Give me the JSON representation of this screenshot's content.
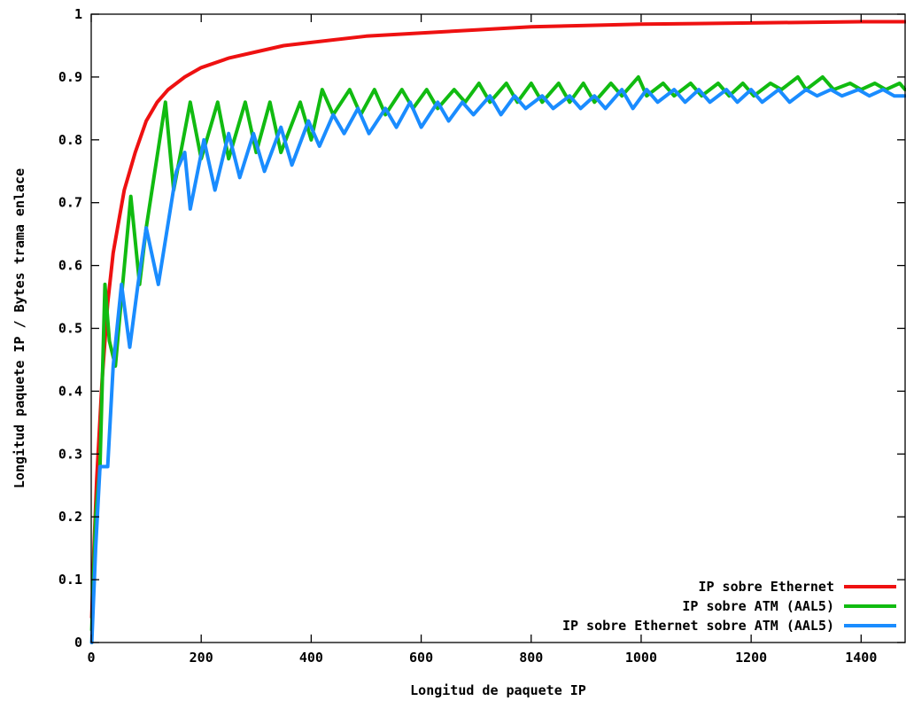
{
  "chart_data": {
    "type": "line",
    "title": "",
    "xlabel": "Longitud de paquete IP",
    "ylabel": "Longitud paquete IP / Bytes trama enlace",
    "xlim": [
      0,
      1480
    ],
    "ylim": [
      0,
      1
    ],
    "x_ticks": [
      {
        "value": 0,
        "label": "0"
      },
      {
        "value": 200,
        "label": "200"
      },
      {
        "value": 400,
        "label": "400"
      },
      {
        "value": 600,
        "label": "600"
      },
      {
        "value": 800,
        "label": "800"
      },
      {
        "value": 1000,
        "label": "1000"
      },
      {
        "value": 1200,
        "label": "1200"
      },
      {
        "value": 1400,
        "label": "1400"
      }
    ],
    "y_ticks": [
      {
        "value": 0,
        "label": "0"
      },
      {
        "value": 0.1,
        "label": "0.1"
      },
      {
        "value": 0.2,
        "label": "0.2"
      },
      {
        "value": 0.3,
        "label": "0.3"
      },
      {
        "value": 0.4,
        "label": "0.4"
      },
      {
        "value": 0.5,
        "label": "0.5"
      },
      {
        "value": 0.6,
        "label": "0.6"
      },
      {
        "value": 0.7,
        "label": "0.7"
      },
      {
        "value": 0.8,
        "label": "0.8"
      },
      {
        "value": 0.9,
        "label": "0.9"
      },
      {
        "value": 1,
        "label": "1"
      }
    ],
    "grid": false,
    "legend_position": "bottom-right",
    "series": [
      {
        "name": "IP sobre Ethernet",
        "color": "#ee1111",
        "points": [
          [
            1,
            0.04
          ],
          [
            5,
            0.15
          ],
          [
            10,
            0.26
          ],
          [
            20,
            0.42
          ],
          [
            30,
            0.54
          ],
          [
            40,
            0.62
          ],
          [
            50,
            0.67
          ],
          [
            60,
            0.72
          ],
          [
            70,
            0.75
          ],
          [
            80,
            0.78
          ],
          [
            100,
            0.83
          ],
          [
            120,
            0.86
          ],
          [
            140,
            0.88
          ],
          [
            170,
            0.9
          ],
          [
            200,
            0.915
          ],
          [
            250,
            0.93
          ],
          [
            300,
            0.94
          ],
          [
            350,
            0.95
          ],
          [
            400,
            0.955
          ],
          [
            500,
            0.965
          ],
          [
            600,
            0.97
          ],
          [
            700,
            0.975
          ],
          [
            800,
            0.98
          ],
          [
            900,
            0.982
          ],
          [
            1000,
            0.984
          ],
          [
            1100,
            0.985
          ],
          [
            1200,
            0.986
          ],
          [
            1300,
            0.987
          ],
          [
            1400,
            0.988
          ],
          [
            1480,
            0.988
          ]
        ]
      },
      {
        "name": "IP sobre ATM (AAL5)",
        "color": "#11bb11",
        "points": [
          [
            1,
            0.02
          ],
          [
            8,
            0.2
          ],
          [
            16,
            0.28
          ],
          [
            25,
            0.57
          ],
          [
            33,
            0.48
          ],
          [
            44,
            0.44
          ],
          [
            55,
            0.55
          ],
          [
            72,
            0.71
          ],
          [
            88,
            0.57
          ],
          [
            100,
            0.66
          ],
          [
            135,
            0.86
          ],
          [
            150,
            0.72
          ],
          [
            180,
            0.86
          ],
          [
            200,
            0.77
          ],
          [
            230,
            0.86
          ],
          [
            250,
            0.77
          ],
          [
            280,
            0.86
          ],
          [
            300,
            0.78
          ],
          [
            325,
            0.86
          ],
          [
            345,
            0.78
          ],
          [
            380,
            0.86
          ],
          [
            400,
            0.8
          ],
          [
            420,
            0.88
          ],
          [
            440,
            0.84
          ],
          [
            470,
            0.88
          ],
          [
            490,
            0.84
          ],
          [
            515,
            0.88
          ],
          [
            535,
            0.84
          ],
          [
            565,
            0.88
          ],
          [
            585,
            0.85
          ],
          [
            610,
            0.88
          ],
          [
            630,
            0.85
          ],
          [
            660,
            0.88
          ],
          [
            680,
            0.86
          ],
          [
            705,
            0.89
          ],
          [
            725,
            0.86
          ],
          [
            755,
            0.89
          ],
          [
            775,
            0.86
          ],
          [
            800,
            0.89
          ],
          [
            820,
            0.86
          ],
          [
            850,
            0.89
          ],
          [
            870,
            0.86
          ],
          [
            895,
            0.89
          ],
          [
            915,
            0.86
          ],
          [
            945,
            0.89
          ],
          [
            965,
            0.87
          ],
          [
            995,
            0.9
          ],
          [
            1010,
            0.87
          ],
          [
            1040,
            0.89
          ],
          [
            1060,
            0.87
          ],
          [
            1090,
            0.89
          ],
          [
            1110,
            0.87
          ],
          [
            1140,
            0.89
          ],
          [
            1160,
            0.87
          ],
          [
            1185,
            0.89
          ],
          [
            1205,
            0.87
          ],
          [
            1235,
            0.89
          ],
          [
            1255,
            0.88
          ],
          [
            1285,
            0.9
          ],
          [
            1300,
            0.88
          ],
          [
            1330,
            0.9
          ],
          [
            1350,
            0.88
          ],
          [
            1380,
            0.89
          ],
          [
            1400,
            0.88
          ],
          [
            1425,
            0.89
          ],
          [
            1445,
            0.88
          ],
          [
            1470,
            0.89
          ],
          [
            1480,
            0.88
          ]
        ]
      },
      {
        "name": "IP sobre Ethernet sobre ATM (AAL5)",
        "color": "#1a8cff",
        "points": [
          [
            1,
            0.0
          ],
          [
            8,
            0.15
          ],
          [
            16,
            0.28
          ],
          [
            30,
            0.28
          ],
          [
            40,
            0.44
          ],
          [
            55,
            0.57
          ],
          [
            70,
            0.47
          ],
          [
            85,
            0.57
          ],
          [
            100,
            0.66
          ],
          [
            122,
            0.57
          ],
          [
            155,
            0.75
          ],
          [
            170,
            0.78
          ],
          [
            180,
            0.69
          ],
          [
            205,
            0.8
          ],
          [
            225,
            0.72
          ],
          [
            250,
            0.81
          ],
          [
            270,
            0.74
          ],
          [
            295,
            0.81
          ],
          [
            315,
            0.75
          ],
          [
            345,
            0.82
          ],
          [
            365,
            0.76
          ],
          [
            395,
            0.83
          ],
          [
            415,
            0.79
          ],
          [
            440,
            0.84
          ],
          [
            460,
            0.81
          ],
          [
            485,
            0.85
          ],
          [
            505,
            0.81
          ],
          [
            535,
            0.85
          ],
          [
            555,
            0.82
          ],
          [
            580,
            0.86
          ],
          [
            600,
            0.82
          ],
          [
            630,
            0.86
          ],
          [
            650,
            0.83
          ],
          [
            675,
            0.86
          ],
          [
            695,
            0.84
          ],
          [
            725,
            0.87
          ],
          [
            745,
            0.84
          ],
          [
            770,
            0.87
          ],
          [
            790,
            0.85
          ],
          [
            820,
            0.87
          ],
          [
            840,
            0.85
          ],
          [
            870,
            0.87
          ],
          [
            890,
            0.85
          ],
          [
            915,
            0.87
          ],
          [
            935,
            0.85
          ],
          [
            965,
            0.88
          ],
          [
            985,
            0.85
          ],
          [
            1010,
            0.88
          ],
          [
            1030,
            0.86
          ],
          [
            1060,
            0.88
          ],
          [
            1080,
            0.86
          ],
          [
            1105,
            0.88
          ],
          [
            1125,
            0.86
          ],
          [
            1155,
            0.88
          ],
          [
            1175,
            0.86
          ],
          [
            1200,
            0.88
          ],
          [
            1220,
            0.86
          ],
          [
            1250,
            0.88
          ],
          [
            1270,
            0.86
          ],
          [
            1300,
            0.88
          ],
          [
            1320,
            0.87
          ],
          [
            1345,
            0.88
          ],
          [
            1365,
            0.87
          ],
          [
            1395,
            0.88
          ],
          [
            1415,
            0.87
          ],
          [
            1440,
            0.88
          ],
          [
            1460,
            0.87
          ],
          [
            1480,
            0.87
          ]
        ]
      }
    ]
  }
}
